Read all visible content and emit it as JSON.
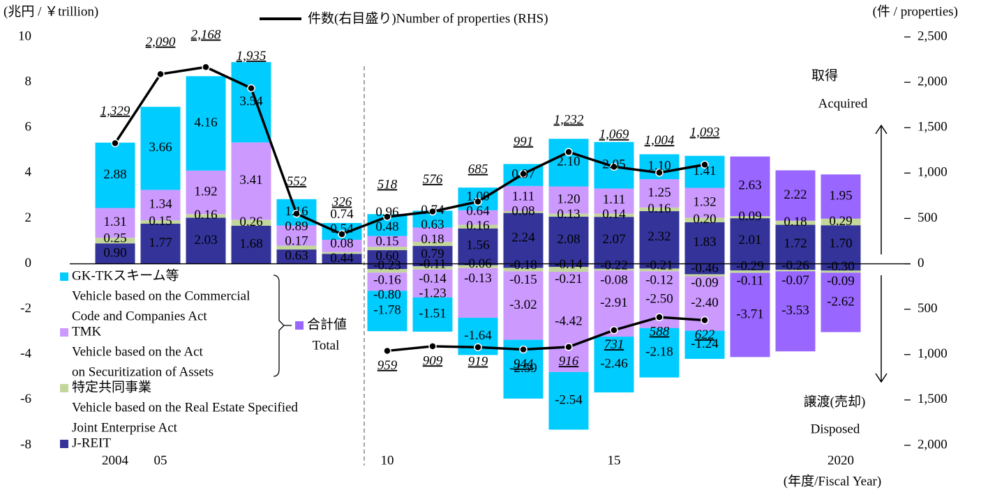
{
  "chart_data": {
    "type": "bar",
    "unit_label": "(兆円 / ￥trillion)",
    "y2_unit_label": "(件 / properties)",
    "x_label": "(年度/Fiscal Year)",
    "annotations": {
      "acquired_ja": "取得",
      "acquired_en": "Acquired",
      "disposed_ja": "譲渡(売却)",
      "disposed_en": "Disposed"
    },
    "categories": [
      "2004",
      "05",
      null,
      null,
      null,
      null,
      "10",
      null,
      null,
      null,
      null,
      "15",
      null,
      null,
      null,
      null,
      "2020"
    ],
    "ylim": [
      -8,
      10
    ],
    "yticks": [
      -8,
      -6,
      -4,
      -2,
      0,
      2,
      4,
      6,
      8,
      10
    ],
    "y2lim": [
      -2000,
      2500
    ],
    "y2ticks": [
      {
        "value": -2000,
        "label": "2,000"
      },
      {
        "value": -1500,
        "label": "1,500"
      },
      {
        "value": -1000,
        "label": "1,000"
      },
      {
        "value": -500,
        "label": "500"
      },
      0,
      500,
      {
        "value": 1000,
        "label": "1,000"
      },
      {
        "value": 1500,
        "label": "1,500"
      },
      {
        "value": 2000,
        "label": "2,000"
      },
      {
        "value": 2500,
        "label": "2,500"
      }
    ],
    "series": [
      {
        "name": "J-REIT",
        "color": "#333399",
        "label_color": "#ffffff",
        "acquired": [
          0.9,
          1.77,
          2.03,
          1.68,
          0.63,
          0.44,
          0.6,
          0.79,
          1.56,
          2.24,
          2.08,
          2.07,
          2.32,
          1.83,
          2.01,
          1.72,
          1.7
        ],
        "acquired_labels": [
          "0.90",
          "1.77",
          "2.03",
          "1.68",
          "0.63",
          "0.44",
          "0.60",
          "0.79",
          "1.56",
          "2.24",
          "2.08",
          "2.07",
          "2.32",
          "1.83",
          "2.01",
          "1.72",
          "1.70"
        ],
        "disposed": [
          null,
          null,
          null,
          null,
          null,
          null,
          -0.23,
          -0.11,
          -0.06,
          -0.18,
          -0.14,
          -0.22,
          -0.21,
          -0.46,
          -0.29,
          -0.26,
          -0.3
        ],
        "disposed_labels": [
          null,
          null,
          null,
          null,
          null,
          null,
          "-0.23",
          "-0.11",
          "-0.06",
          "-0.18",
          "-0.14",
          "-0.22",
          "-0.21",
          "-0.46",
          "-0.29",
          "-0.26",
          "-0.30"
        ]
      },
      {
        "name": "特定共同事業",
        "description": [
          "Vehicle based on the Real Estate Specified",
          "Joint Enterprise Act"
        ],
        "color": "#c4d79b",
        "label_color": "#000000",
        "acquired": [
          0.25,
          0.15,
          0.16,
          0.26,
          0.17,
          0.08,
          0.15,
          0.18,
          0.16,
          0.08,
          0.13,
          0.14,
          0.16,
          0.2,
          0.09,
          0.18,
          0.29
        ],
        "acquired_labels": [
          "0.25",
          "0.15",
          "0.16",
          "0.26",
          "0.17",
          "0.08",
          "0.15",
          "0.18",
          "0.16",
          "0.08",
          "0.13",
          "0.14",
          "0.16",
          "0.20",
          "0.09",
          "0.18",
          "0.29"
        ],
        "disposed": [
          null,
          null,
          null,
          null,
          null,
          null,
          -0.16,
          -0.14,
          -0.13,
          -0.15,
          -0.21,
          -0.08,
          -0.12,
          -0.09,
          -0.11,
          -0.07,
          -0.09
        ],
        "disposed_labels": [
          null,
          null,
          null,
          null,
          null,
          null,
          "-0.16",
          "-0.14",
          "-0.13",
          "-0.15",
          "-0.21",
          "-0.08",
          "-0.12",
          "-0.09",
          "-0.11",
          "-0.07",
          "-0.09"
        ]
      },
      {
        "name": "TMK",
        "description": [
          "Vehicle based on the Act",
          "on Securitization of Assets"
        ],
        "color": "#cc99ff",
        "label_color": "#000000",
        "acquired": [
          1.31,
          1.34,
          1.92,
          3.41,
          0.89,
          0.54,
          0.48,
          0.63,
          0.64,
          1.11,
          1.2,
          1.11,
          1.25,
          1.32,
          null,
          null,
          null
        ],
        "acquired_labels": [
          "1.31",
          "1.34",
          "1.92",
          "3.41",
          "0.89",
          "0.54",
          "0.48",
          "0.63",
          "0.64",
          "1.11",
          "1.20",
          "1.11",
          "1.25",
          "1.32",
          null,
          null,
          null
        ],
        "disposed": [
          null,
          null,
          null,
          null,
          null,
          null,
          -0.8,
          -1.23,
          -2.19,
          -3.02,
          -4.42,
          -2.91,
          -2.5,
          -2.4,
          null,
          null,
          null
        ],
        "disposed_labels": [
          null,
          null,
          null,
          null,
          null,
          null,
          "-0.80",
          "-1.23",
          null,
          "-3.02",
          "-4.42",
          "-2.91",
          "-2.50",
          "-2.40",
          null,
          null,
          null
        ]
      },
      {
        "name": "GK-TKスキーム等",
        "description": [
          "Vehicle based on the Commercial",
          "Code and Companies Act"
        ],
        "color": "#00ccff",
        "label_color": "#000000",
        "acquired": [
          2.88,
          3.66,
          4.16,
          3.54,
          1.16,
          0.74,
          0.96,
          0.74,
          1.0,
          0.97,
          2.1,
          2.05,
          1.1,
          1.41,
          null,
          null,
          null
        ],
        "acquired_labels": [
          "2.88",
          "3.66",
          "4.16",
          "3.54",
          "1.16",
          "0.74",
          "0.96",
          "0.74",
          "1.00",
          "0.97",
          "2.10",
          "2.05",
          "1.10",
          "1.41",
          null,
          null,
          null
        ],
        "disposed": [
          null,
          null,
          null,
          null,
          null,
          null,
          -1.78,
          -1.51,
          -1.64,
          -2.59,
          -2.54,
          -2.46,
          -2.18,
          -1.24,
          null,
          null,
          null
        ],
        "disposed_labels": [
          null,
          null,
          null,
          null,
          null,
          null,
          "-1.78",
          "-1.51",
          "-1.64",
          "-2.59",
          "-2.54",
          "-2.46",
          "-2.18",
          "-1.24",
          null,
          null,
          null
        ]
      },
      {
        "name": "合計値",
        "description": [
          "Total"
        ],
        "color": "#9966ff",
        "label_color": "#000000",
        "acquired": [
          null,
          null,
          null,
          null,
          null,
          null,
          null,
          null,
          null,
          null,
          null,
          null,
          null,
          null,
          2.63,
          2.22,
          1.95
        ],
        "acquired_labels": [
          null,
          null,
          null,
          null,
          null,
          null,
          null,
          null,
          null,
          null,
          null,
          null,
          null,
          null,
          "2.63",
          "2.22",
          "1.95"
        ],
        "disposed": [
          null,
          null,
          null,
          null,
          null,
          null,
          null,
          null,
          null,
          null,
          null,
          null,
          null,
          null,
          -3.71,
          -3.53,
          -2.62
        ],
        "disposed_labels": [
          null,
          null,
          null,
          null,
          null,
          null,
          null,
          null,
          null,
          null,
          null,
          null,
          null,
          null,
          "-3.71",
          "-3.53",
          "-2.62"
        ]
      }
    ],
    "line": {
      "name": "件数(右目盛り)Number of properties (RHS)",
      "color": "#000000",
      "axis": "y2",
      "disposed_direction": "down",
      "acquired": [
        1329,
        2090,
        2168,
        1935,
        552,
        326,
        518,
        576,
        685,
        991,
        1232,
        1069,
        1004,
        1093,
        null,
        null,
        null
      ],
      "acquired_labels": [
        "1,329",
        "2,090",
        "2,168",
        "1,935",
        "552",
        "326",
        "518",
        "576",
        "685",
        "991",
        "1,232",
        "1,069",
        "1,004",
        "1,093",
        null,
        null,
        null
      ],
      "disposed": [
        null,
        null,
        null,
        null,
        null,
        null,
        959,
        909,
        919,
        944,
        916,
        731,
        588,
        622,
        null,
        null,
        null
      ],
      "disposed_labels": [
        null,
        null,
        null,
        null,
        null,
        null,
        "959",
        "909",
        "919",
        "944",
        "916",
        "731",
        "588",
        "622",
        null,
        null,
        null
      ]
    }
  }
}
